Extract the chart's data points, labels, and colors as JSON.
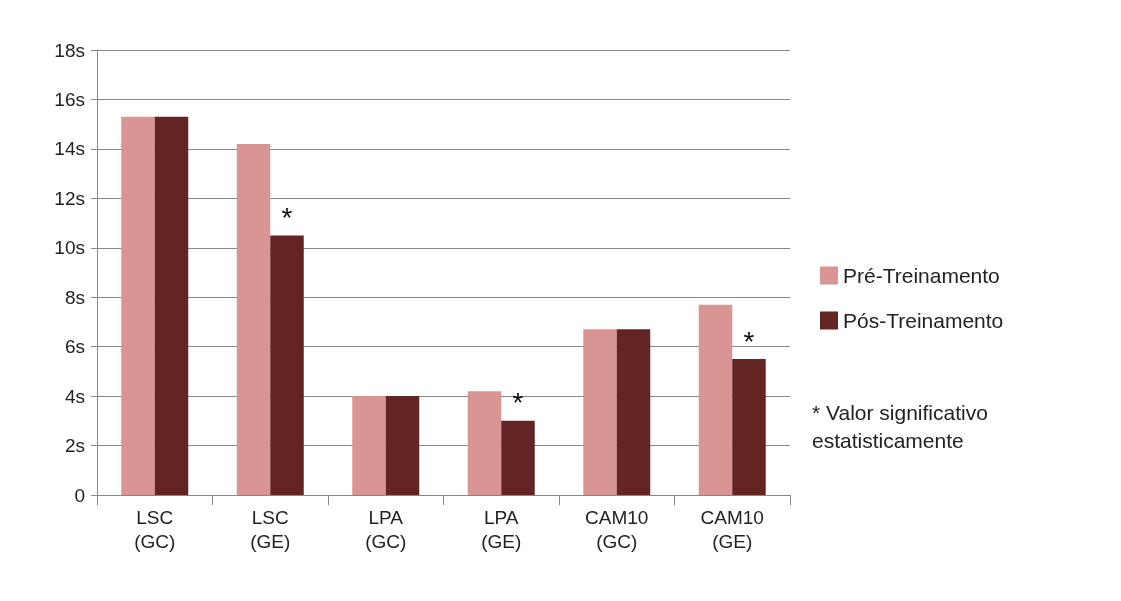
{
  "chart_data": {
    "type": "bar",
    "categories": [
      "LSC (GC)",
      "LSC (GE)",
      "LPA (GC)",
      "LPA (GE)",
      "CAM10 (GC)",
      "CAM10 (GE)"
    ],
    "series": [
      {
        "name": "Pré-Treinamento",
        "color": "#d99594",
        "values": [
          15.3,
          14.2,
          4.0,
          4.2,
          6.7,
          7.7
        ]
      },
      {
        "name": "Pós-Treinamento",
        "color": "#632523",
        "values": [
          15.3,
          10.5,
          4.0,
          3.0,
          6.7,
          5.5
        ]
      }
    ],
    "ylim": [
      0,
      18
    ],
    "yticks": [
      0,
      {
        "value": 2,
        "label": "2s"
      },
      {
        "value": 4,
        "label": "4s"
      },
      {
        "value": 6,
        "label": "6s"
      },
      {
        "value": 8,
        "label": "8s"
      },
      {
        "value": 10,
        "label": "10s"
      },
      {
        "value": 12,
        "label": "12s"
      },
      {
        "value": 14,
        "label": "14s"
      },
      {
        "value": 16,
        "label": "16s"
      },
      {
        "value": 18,
        "label": "18s"
      }
    ],
    "grid": "y",
    "legend": "right",
    "annotations": [
      {
        "text": "*",
        "x": "LSC (GE)",
        "y": 10.5
      },
      {
        "text": "*",
        "x": "LPA (GE)",
        "y": 3.0
      },
      {
        "text": "*",
        "x": "CAM10 (GE)",
        "y": 5.5
      },
      "* Valor significativo estatisticamente"
    ]
  }
}
